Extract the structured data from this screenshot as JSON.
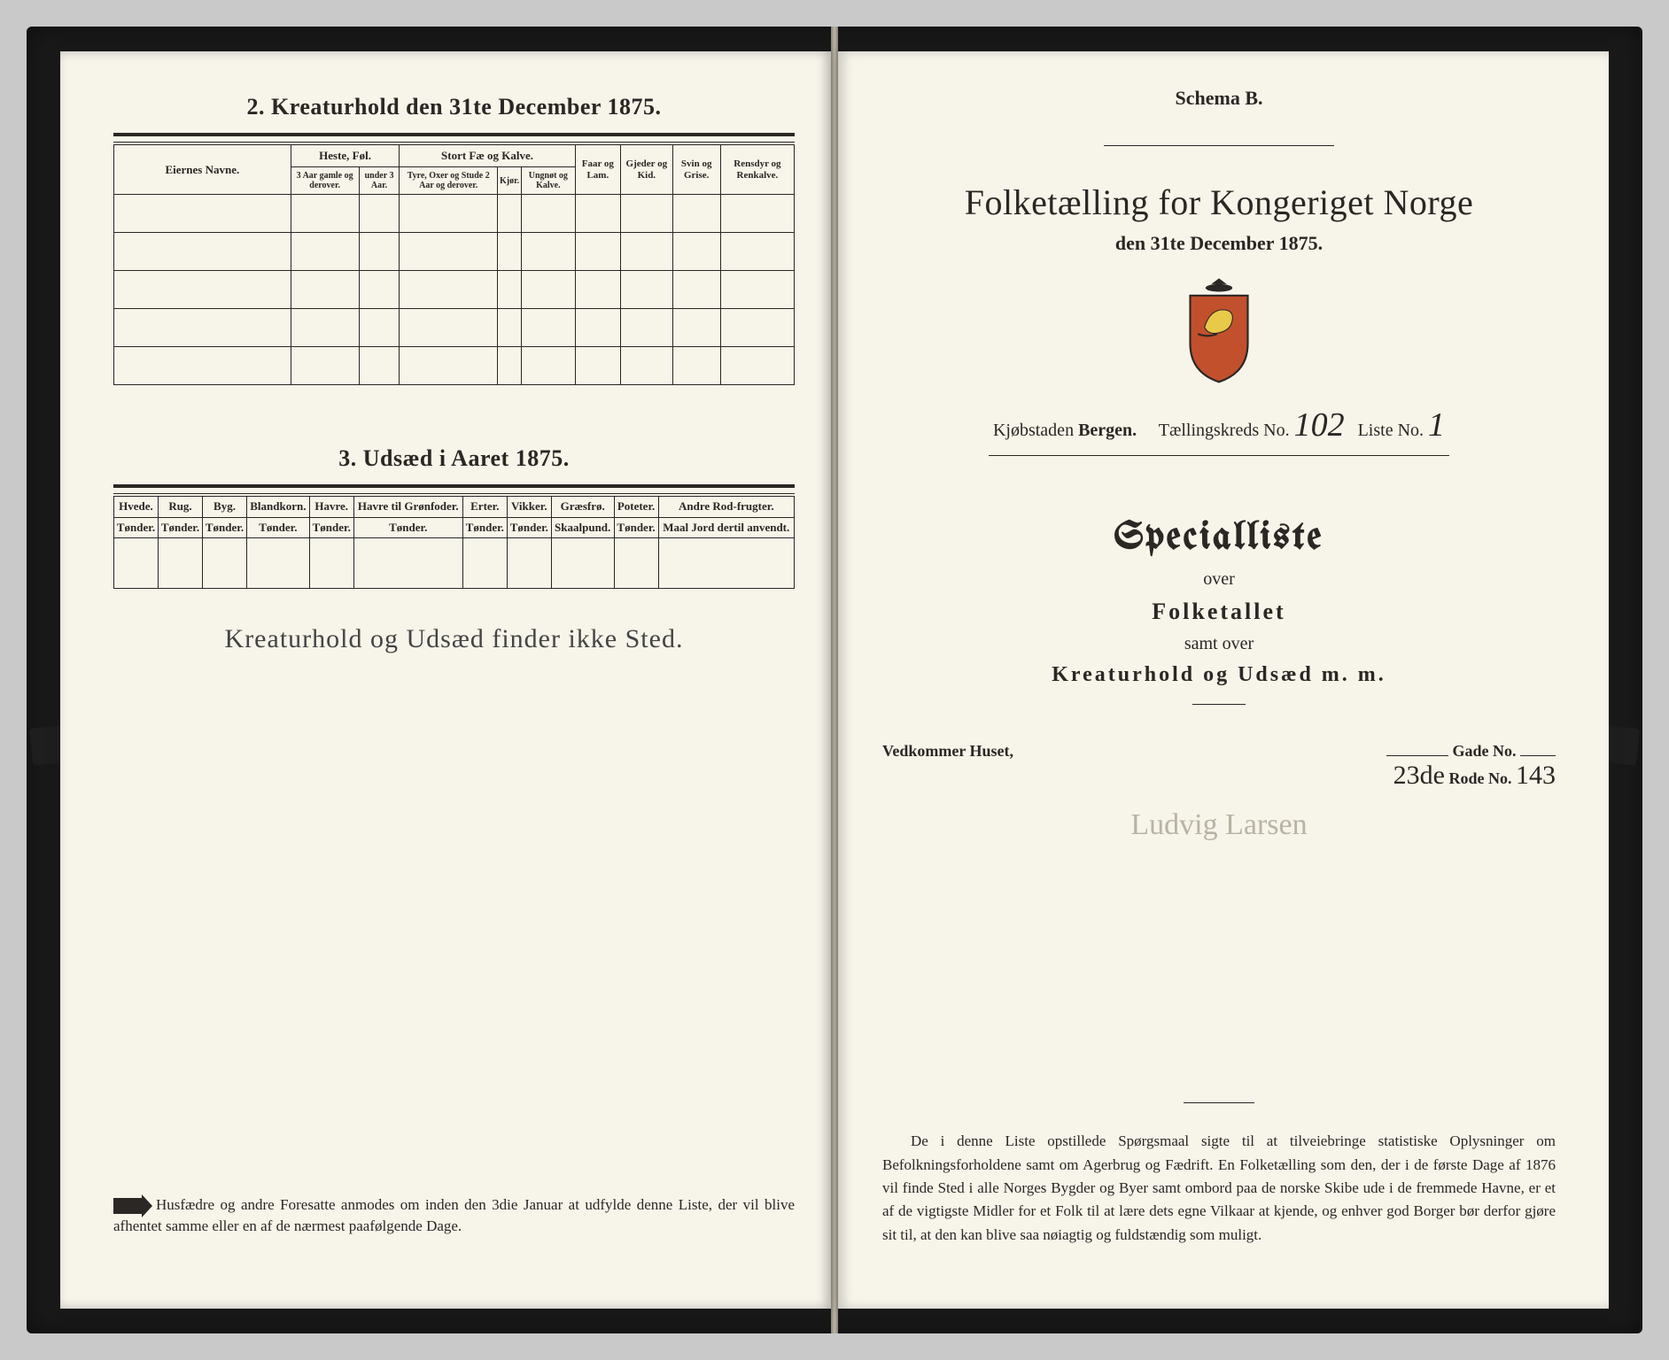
{
  "colors": {
    "paper": "#f7f4ea",
    "ink": "#2a2724",
    "scan_bg": "#c9c9c9",
    "book_edge": "#1a1a1a",
    "faded_script": "#b8b3a3"
  },
  "left": {
    "section2_title": "2.  Kreaturhold den 31te December 1875.",
    "table2": {
      "owner_header": "Eiernes Navne.",
      "group_heste": "Heste, Føl.",
      "group_stort": "Stort Fæ og Kalve.",
      "col_faar": "Faar og Lam.",
      "col_gjeder": "Gjeder og Kid.",
      "col_svin": "Svin og Grise.",
      "col_rensdyr": "Rensdyr og Renkalve.",
      "sub_heste_a": "3 Aar gamle og derover.",
      "sub_heste_b": "under 3 Aar.",
      "sub_stort_a": "Tyre, Oxer og Stude 2 Aar og derover.",
      "sub_stort_b": "Kjør.",
      "sub_stort_c": "Ungnøt og Kalve.",
      "blank_rows": 5
    },
    "section3_title": "3.  Udsæd i Aaret 1875.",
    "table3": {
      "columns": [
        {
          "h": "Hvede.",
          "u": "Tønder."
        },
        {
          "h": "Rug.",
          "u": "Tønder."
        },
        {
          "h": "Byg.",
          "u": "Tønder."
        },
        {
          "h": "Blandkorn.",
          "u": "Tønder."
        },
        {
          "h": "Havre.",
          "u": "Tønder."
        },
        {
          "h": "Havre til Grønfoder.",
          "u": "Tønder."
        },
        {
          "h": "Erter.",
          "u": "Tønder."
        },
        {
          "h": "Vikker.",
          "u": "Tønder."
        },
        {
          "h": "Græsfrø.",
          "u": "Skaalpund."
        },
        {
          "h": "Poteter.",
          "u": "Tønder."
        },
        {
          "h": "Andre Rod-frugter.",
          "u": "Maal Jord dertil anvendt."
        }
      ],
      "blank_rows": 1
    },
    "handwritten_note": "Kreaturhold og Udsæd finder ikke Sted.",
    "footnote": "Husfædre og andre Foresatte anmodes om inden den 3die Januar at udfylde denne Liste, der vil blive afhentet samme eller en af de nærmest paafølgende Dage."
  },
  "right": {
    "schema": "Schema B.",
    "title": "Folketælling for Kongeriget Norge",
    "subtitle": "den 31te December 1875.",
    "crest_label": "coat-of-arms",
    "kjobstad_label": "Kjøbstaden",
    "kjobstad_value": "Bergen.",
    "kreds_label": "Tællingskreds No.",
    "kreds_value": "102",
    "liste_label": "Liste No.",
    "liste_value": "1",
    "spec_title": "Specialliste",
    "over": "over",
    "folketallet": "Folketallet",
    "samt_over": "samt over",
    "kreatur_line": "Kreaturhold og Udsæd m. m.",
    "vedk": "Vedkommer Huset,",
    "gade_label": "Gade No.",
    "rode_prefix": "23de",
    "rode_label": "Rode No.",
    "rode_value": "143",
    "faded_signature": "Ludvig Larsen",
    "paragraph": "De i denne Liste opstillede Spørgsmaal sigte til at tilveiebringe statistiske Oplysninger om Befolkningsforholdene samt om Agerbrug og Fædrift.  En Folketælling som den, der i de første Dage af 1876 vil finde Sted i alle Norges Bygder og Byer samt ombord paa de norske Skibe ude i de fremmede Havne, er et af de vigtigste Midler for et Folk til at lære dets egne Vilkaar at kjende, og enhver god Borger bør derfor gjøre sit til, at den kan blive saa nøiagtig og fuldstændig som muligt."
  }
}
